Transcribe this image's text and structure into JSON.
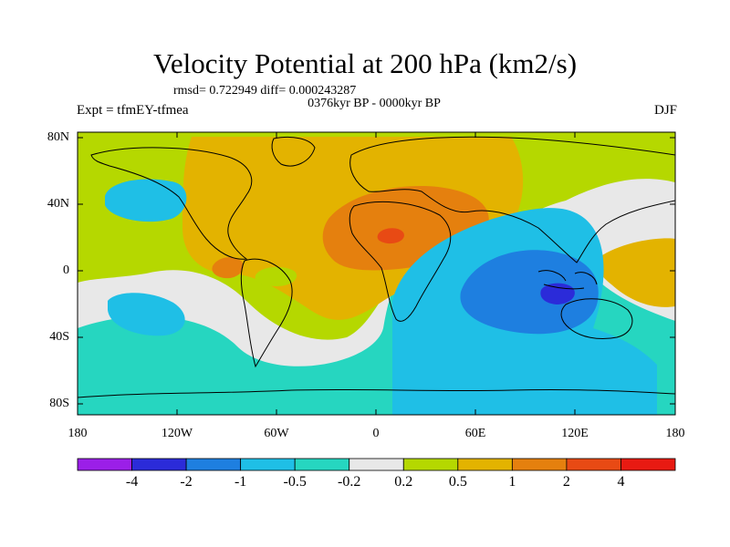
{
  "header": {
    "title": "Velocity Potential at 200 hPa (km2/s)",
    "stats": "rmsd= 0.722949 diff= 0.000243287",
    "period": "0376kyr BP - 0000kyr BP",
    "experiment": "Expt = tfmEY-tfmea",
    "season": "DJF"
  },
  "axes": {
    "lat_ticks": [
      "80N",
      "40N",
      "0",
      "40S",
      "80S"
    ],
    "lon_ticks": [
      "180",
      "120W",
      "60W",
      "0",
      "60E",
      "120E",
      "180"
    ]
  },
  "colorbar": {
    "labels": [
      "-4",
      "-2",
      "-1",
      "-0.5",
      "-0.2",
      "0.2",
      "0.5",
      "1",
      "2",
      "4"
    ],
    "colors": [
      "#9b1fe8",
      "#2b2bd9",
      "#1e7fe0",
      "#1fbfe6",
      "#26d6c0",
      "#e8e8e8",
      "#b5d800",
      "#e3b300",
      "#e5800e",
      "#e84a14",
      "#e81a12"
    ]
  },
  "map": {
    "fill_colors": {
      "neutral": "#e8e8e8",
      "pos_02": "#b5d800",
      "pos_05": "#e3b300",
      "pos_1": "#e5800e",
      "pos_2": "#e84a14",
      "neg_02": "#26d6c0",
      "neg_05": "#1fbfe6",
      "neg_1": "#1e7fe0",
      "neg_2": "#2b2bd9"
    }
  }
}
